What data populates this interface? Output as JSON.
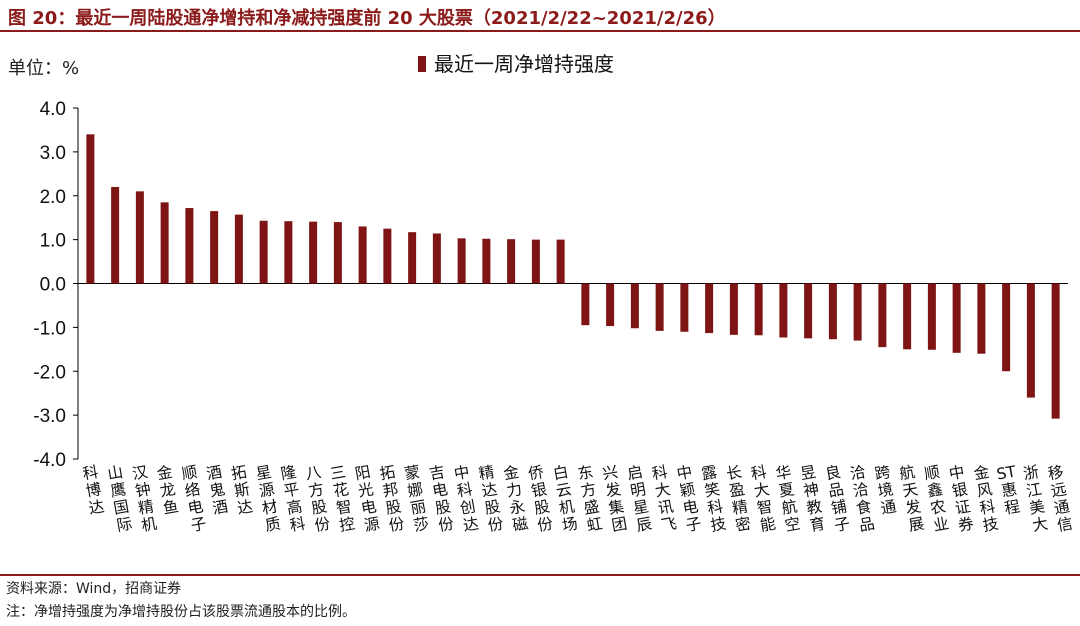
{
  "figure": {
    "title": "图 20：最近一周陆股通净增持和净减持强度前 20 大股票（2021/2/22~2021/2/26）",
    "unit_label": "单位：%",
    "source": "资料来源：Wind，招商证券",
    "note": "注：净增持强度为净增持股份占该股票流通股本的比例。"
  },
  "colors": {
    "bar": "#7f1414",
    "accent": "#8b1a1a"
  },
  "chart_data": {
    "type": "bar",
    "ylim": [
      -4.0,
      4.0
    ],
    "yticks": [
      "4.0",
      "3.0",
      "2.0",
      "1.0",
      "0.0",
      "-1.0",
      "-2.0",
      "-3.0",
      "-4.0"
    ],
    "grid": false,
    "legend_position": "top",
    "series": [
      {
        "name": "最近一周净增持强度",
        "values": [
          3.4,
          2.2,
          2.1,
          1.85,
          1.72,
          1.65,
          1.57,
          1.43,
          1.42,
          1.41,
          1.4,
          1.3,
          1.25,
          1.17,
          1.14,
          1.03,
          1.02,
          1.01,
          1.0,
          1.0,
          -0.95,
          -0.97,
          -1.02,
          -1.08,
          -1.1,
          -1.13,
          -1.17,
          -1.18,
          -1.23,
          -1.25,
          -1.27,
          -1.3,
          -1.45,
          -1.5,
          -1.51,
          -1.58,
          -1.6,
          -2.0,
          -2.6,
          -3.08
        ]
      }
    ],
    "categories": [
      "科博达",
      "山鹰国际",
      "汉钟精机",
      "金龙鱼",
      "顺络电子",
      "酒鬼酒",
      "拓斯达",
      "星源材质",
      "隆平高科",
      "八方股份",
      "三花智控",
      "阳光电源",
      "拓邦股份",
      "蒙娜丽莎",
      "吉电股份",
      "中科创达",
      "精达股份",
      "金力永磁",
      "侨银股份",
      "白云机场",
      "东方盛虹",
      "兴发集团",
      "启明星辰",
      "科大讯飞",
      "中颖电子",
      "露笑科技",
      "长盈精密",
      "科大智能",
      "华夏航空",
      "昱神教育",
      "良品铺子",
      "洽洽食品",
      "跨境通",
      "航天发展",
      "顺鑫农业",
      "中银证券",
      "金风科技",
      "ST惠程",
      "浙江美大",
      "移远通信"
    ]
  }
}
